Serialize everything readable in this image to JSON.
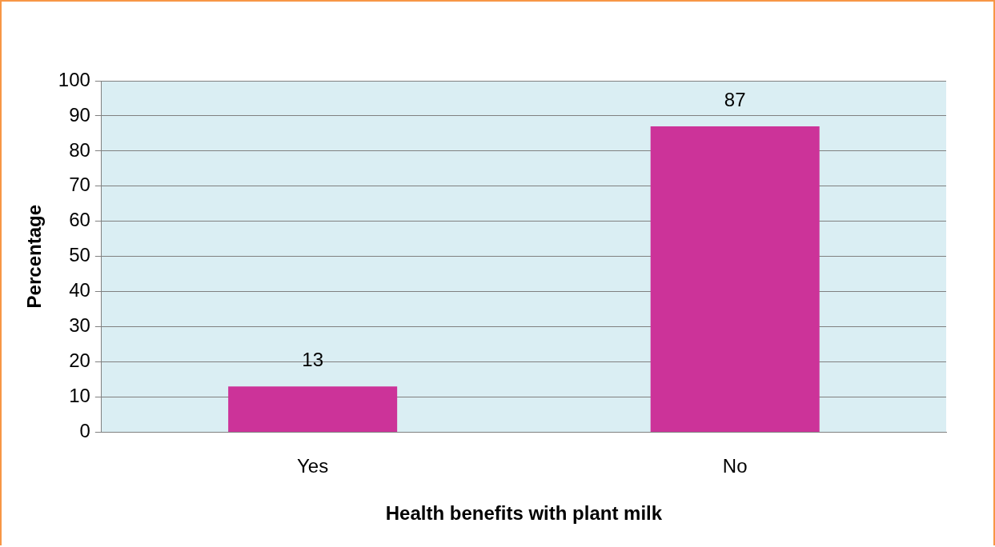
{
  "chart_data": {
    "type": "bar",
    "xlabel": "Health benefits with plant milk",
    "ylabel": "Percentage",
    "categories": [
      "Yes",
      "No"
    ],
    "values": [
      13,
      87
    ],
    "color": "#cc3399",
    "ylim": [
      0,
      100
    ],
    "yticks": [
      0,
      10,
      20,
      30,
      40,
      50,
      60,
      70,
      80,
      90,
      100
    ],
    "grid": "y",
    "data_labels": true,
    "legend": false
  }
}
